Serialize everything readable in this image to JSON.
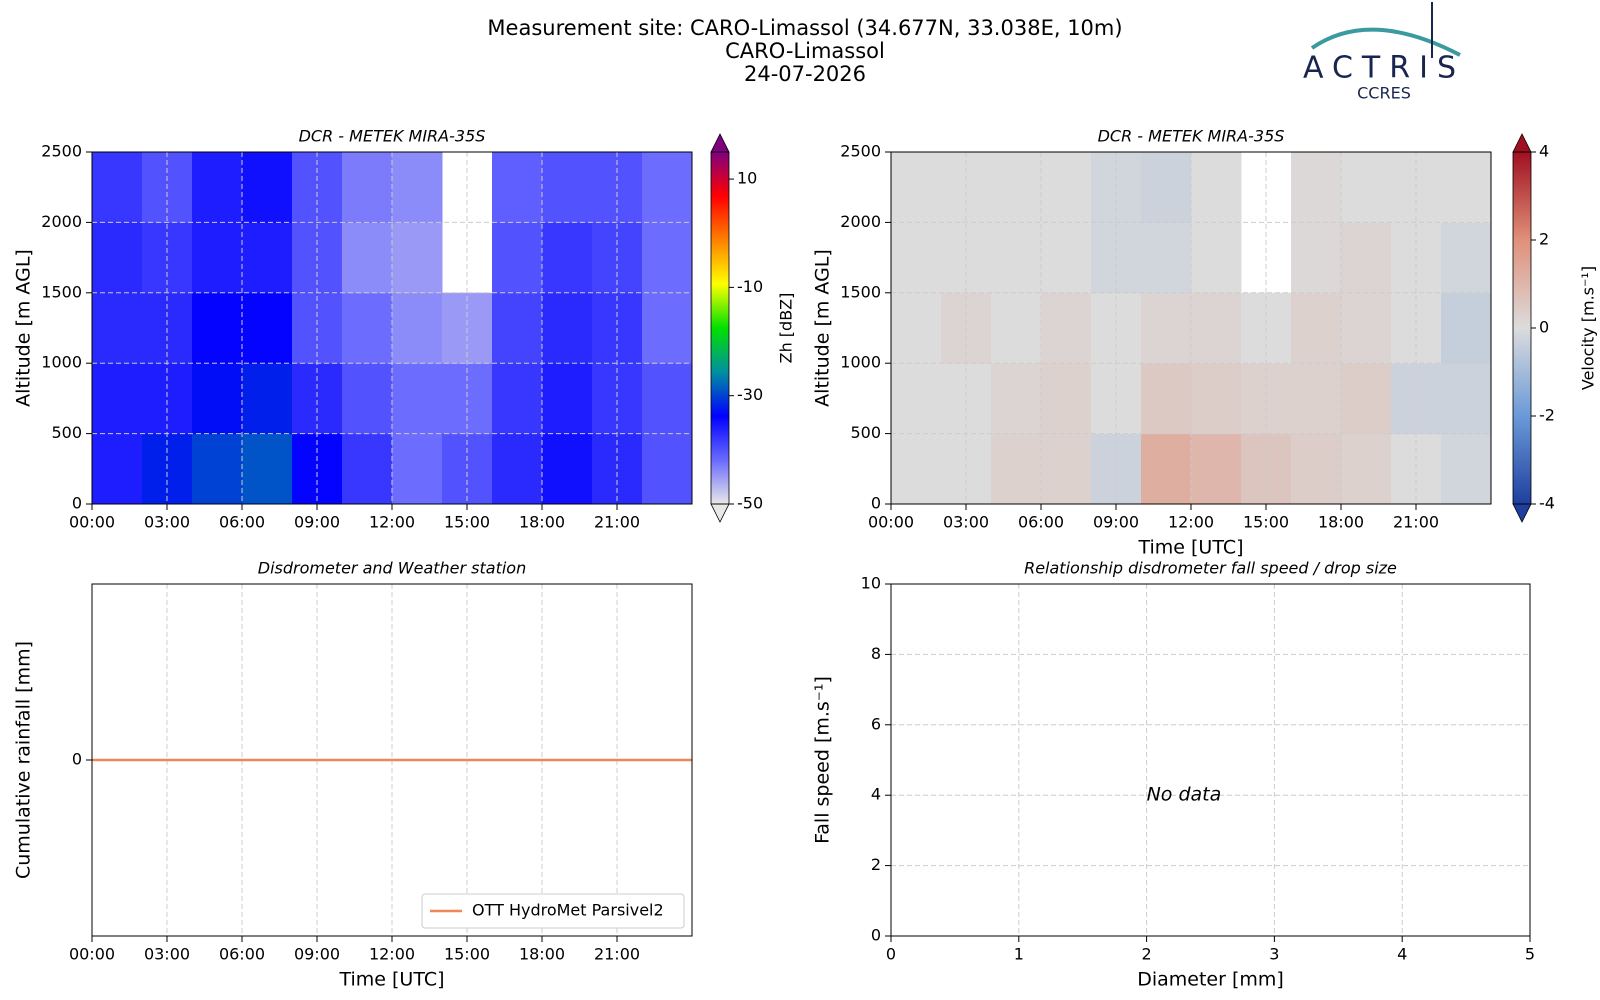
{
  "header": {
    "lines": [
      "Measurement site: CARO-Limassol (34.677N, 33.038E, 10m)",
      "CARO-Limassol",
      "24-07-2026"
    ]
  },
  "logo": {
    "name": "ACTRIS",
    "sub": "CCRES"
  },
  "chart_data": [
    {
      "type": "heatmap",
      "title": "DCR - METEK MIRA-35S",
      "ylabel": "Altitude [m AGL]",
      "xlim": [
        0,
        24
      ],
      "ylim": [
        0,
        2500
      ],
      "xticks": [
        {
          "value": 0,
          "label": "00:00"
        },
        {
          "value": 3,
          "label": "03:00"
        },
        {
          "value": 6,
          "label": "06:00"
        },
        {
          "value": 9,
          "label": "09:00"
        },
        {
          "value": 12,
          "label": "12:00"
        },
        {
          "value": 15,
          "label": "15:00"
        },
        {
          "value": 18,
          "label": "18:00"
        },
        {
          "value": 21,
          "label": "21:00"
        }
      ],
      "yticks": [
        0,
        500,
        1000,
        1500,
        2000,
        2500
      ],
      "grid": true,
      "x_edges": [
        0,
        2,
        4,
        6,
        8,
        10,
        12,
        14,
        16,
        18,
        20,
        22,
        24
      ],
      "y_edges": [
        0,
        500,
        1000,
        1500,
        2000,
        2500
      ],
      "z": [
        [
          -36,
          -32,
          -30,
          -29,
          -34,
          -38,
          -42,
          -40,
          -37,
          -35,
          -37,
          -40
        ],
        [
          -36,
          -36,
          -33,
          -32,
          -37,
          -40,
          -42,
          -42,
          -38,
          -36,
          -38,
          -40
        ],
        [
          -37,
          -37,
          -34,
          -34,
          -40,
          -42,
          -44,
          -45,
          -39,
          -37,
          -38,
          -42
        ],
        [
          -37,
          -38,
          -36,
          -36,
          -40,
          -44,
          -45,
          null,
          -40,
          -38,
          -39,
          -42
        ],
        [
          -38,
          -40,
          -36,
          -35,
          -40,
          -43,
          -44,
          null,
          -41,
          -40,
          -40,
          -42
        ]
      ],
      "colorbar": {
        "label": "Zh [dBZ]",
        "lim": [
          -50,
          15
        ],
        "ticks": [
          -50,
          -30,
          -10,
          10
        ],
        "colormap": [
          "#e8e8e8",
          "#6a6aff",
          "#0000ff",
          "#0090a0",
          "#00e000",
          "#ffff00",
          "#ff8000",
          "#ff0000",
          "#800080"
        ]
      }
    },
    {
      "type": "heatmap",
      "title": "DCR - METEK MIRA-35S",
      "xlabel": "Time [UTC]",
      "ylabel": "Altitude [m AGL]",
      "xlim": [
        0,
        24
      ],
      "ylim": [
        0,
        2500
      ],
      "xticks": [
        {
          "value": 0,
          "label": "00:00"
        },
        {
          "value": 3,
          "label": "03:00"
        },
        {
          "value": 6,
          "label": "06:00"
        },
        {
          "value": 9,
          "label": "09:00"
        },
        {
          "value": 12,
          "label": "12:00"
        },
        {
          "value": 15,
          "label": "15:00"
        },
        {
          "value": 18,
          "label": "18:00"
        },
        {
          "value": 21,
          "label": "21:00"
        }
      ],
      "yticks": [
        0,
        500,
        1000,
        1500,
        2000,
        2500
      ],
      "grid": true,
      "x_edges": [
        0,
        2,
        4,
        6,
        8,
        10,
        12,
        14,
        16,
        18,
        20,
        22,
        24
      ],
      "y_edges": [
        0,
        500,
        1000,
        1500,
        2000,
        2500
      ],
      "z": [
        [
          0,
          0,
          0.3,
          0.3,
          -0.3,
          1.2,
          1,
          0.6,
          0.4,
          0.3,
          0,
          -0.2
        ],
        [
          0,
          0,
          0.2,
          0.3,
          0,
          0.5,
          0.4,
          0.3,
          0.3,
          0.4,
          -0.3,
          -0.3
        ],
        [
          0,
          0.2,
          0,
          0.2,
          0,
          0.2,
          0.2,
          0,
          0.3,
          0.2,
          0,
          -0.4
        ],
        [
          0,
          0,
          0,
          0,
          -0.2,
          -0.2,
          0,
          null,
          0.1,
          0.2,
          0,
          -0.2
        ],
        [
          0,
          0,
          0,
          0,
          -0.2,
          -0.3,
          0,
          null,
          0.1,
          0,
          0,
          0
        ]
      ],
      "colorbar": {
        "label": "Velocity [m.s⁻¹]",
        "lim": [
          -4,
          4
        ],
        "ticks": [
          -4,
          -2,
          0,
          2,
          4
        ],
        "colormap": [
          "#1f3f9e",
          "#6a9ad8",
          "#dcdcdc",
          "#e0907a",
          "#a01020"
        ]
      }
    },
    {
      "type": "line",
      "title": "Disdrometer and Weather station",
      "xlabel": "Time [UTC]",
      "ylabel": "Cumulative rainfall [mm]",
      "xlim": [
        0,
        24
      ],
      "ylim": [
        -0.05,
        0.05
      ],
      "xticks": [
        {
          "value": 0,
          "label": "00:00"
        },
        {
          "value": 3,
          "label": "03:00"
        },
        {
          "value": 6,
          "label": "06:00"
        },
        {
          "value": 9,
          "label": "09:00"
        },
        {
          "value": 12,
          "label": "12:00"
        },
        {
          "value": 15,
          "label": "15:00"
        },
        {
          "value": 18,
          "label": "18:00"
        },
        {
          "value": 21,
          "label": "21:00"
        }
      ],
      "yticks": [
        0
      ],
      "grid": true,
      "legend": "lower right",
      "x": [
        0,
        24
      ],
      "series": [
        {
          "name": "OTT HydroMet Parsivel2",
          "color": "#f0865a",
          "values": [
            0,
            0
          ]
        }
      ]
    },
    {
      "type": "scatter",
      "title": "Relationship disdrometer fall speed / drop size",
      "xlabel": "Diameter [mm]",
      "ylabel": "Fall speed [m.s⁻¹]",
      "xlim": [
        0,
        5
      ],
      "ylim": [
        0,
        10
      ],
      "xticks": [
        0,
        1,
        2,
        3,
        4,
        5
      ],
      "yticks": [
        0,
        2,
        4,
        6,
        8,
        10
      ],
      "grid": true,
      "annotation": "No data"
    }
  ]
}
